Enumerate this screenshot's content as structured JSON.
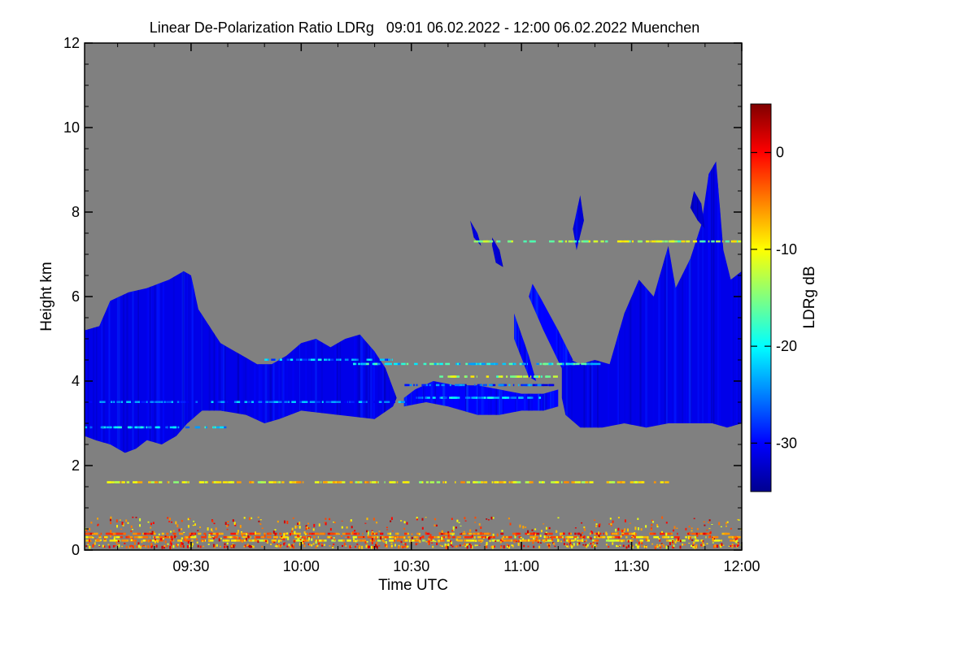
{
  "chart_data": {
    "type": "heatmap",
    "title": "Linear De-Polarization Ratio LDRg   09:01 06.02.2022 - 12:00 06.02.2022 Muenchen",
    "xlabel": "Time UTC",
    "ylabel": "Height km",
    "colorbar_label": "LDRg dB",
    "xlim_minutes_utc": [
      541,
      720
    ],
    "ylim_km": [
      0,
      12
    ],
    "x_ticks": [
      {
        "minute": 570,
        "label": "09:30"
      },
      {
        "minute": 600,
        "label": "10:00"
      },
      {
        "minute": 630,
        "label": "10:30"
      },
      {
        "minute": 660,
        "label": "11:00"
      },
      {
        "minute": 690,
        "label": "11:30"
      },
      {
        "minute": 720,
        "label": "12:00"
      }
    ],
    "y_ticks": [
      {
        "value": 0,
        "label": "0"
      },
      {
        "value": 2,
        "label": "2"
      },
      {
        "value": 4,
        "label": "4"
      },
      {
        "value": 6,
        "label": "6"
      },
      {
        "value": 8,
        "label": "8"
      },
      {
        "value": 10,
        "label": "10"
      },
      {
        "value": 12,
        "label": "12"
      }
    ],
    "colorbar_range_db": [
      -35,
      5
    ],
    "colorbar_ticks": [
      {
        "value": 0,
        "label": "0"
      },
      {
        "value": -10,
        "label": "-10"
      },
      {
        "value": -20,
        "label": "-20"
      },
      {
        "value": -30,
        "label": "-30"
      }
    ],
    "colormap": [
      "#00008f",
      "#0000ff",
      "#0080ff",
      "#00ffff",
      "#80ff80",
      "#ffff00",
      "#ff8000",
      "#ff0000",
      "#800000"
    ],
    "background_color": "#808080",
    "cloud_regions": [
      {
        "name": "morning-cloud-deck",
        "ldr_db": -31,
        "points": [
          [
            541,
            5.2
          ],
          [
            545,
            5.3
          ],
          [
            548,
            5.9
          ],
          [
            553,
            6.1
          ],
          [
            558,
            6.2
          ],
          [
            564,
            6.4
          ],
          [
            568,
            6.6
          ],
          [
            570,
            6.5
          ],
          [
            572,
            5.7
          ],
          [
            578,
            4.9
          ],
          [
            584,
            4.6
          ],
          [
            588,
            4.4
          ],
          [
            592,
            4.4
          ],
          [
            596,
            4.6
          ],
          [
            600,
            4.9
          ],
          [
            604,
            5.0
          ],
          [
            608,
            4.8
          ],
          [
            612,
            5.0
          ],
          [
            616,
            5.1
          ],
          [
            620,
            4.7
          ],
          [
            623,
            4.3
          ],
          [
            626,
            3.6
          ],
          [
            625,
            3.4
          ],
          [
            620,
            3.1
          ],
          [
            610,
            3.2
          ],
          [
            600,
            3.3
          ],
          [
            594,
            3.1
          ],
          [
            590,
            3.0
          ],
          [
            585,
            3.2
          ],
          [
            578,
            3.3
          ],
          [
            573,
            3.3
          ],
          [
            569,
            3.0
          ],
          [
            566,
            2.7
          ],
          [
            562,
            2.5
          ],
          [
            558,
            2.6
          ],
          [
            555,
            2.4
          ],
          [
            552,
            2.3
          ],
          [
            548,
            2.5
          ],
          [
            544,
            2.6
          ],
          [
            541,
            2.7
          ]
        ]
      },
      {
        "name": "mid-level-layer",
        "ldr_db": -30,
        "points": [
          [
            628,
            3.6
          ],
          [
            631,
            3.8
          ],
          [
            636,
            4.0
          ],
          [
            642,
            3.9
          ],
          [
            648,
            3.9
          ],
          [
            654,
            3.8
          ],
          [
            660,
            3.7
          ],
          [
            666,
            3.7
          ],
          [
            670,
            3.8
          ],
          [
            670,
            3.4
          ],
          [
            666,
            3.3
          ],
          [
            660,
            3.3
          ],
          [
            654,
            3.2
          ],
          [
            648,
            3.2
          ],
          [
            640,
            3.4
          ],
          [
            634,
            3.5
          ],
          [
            628,
            3.4
          ]
        ]
      },
      {
        "name": "afternoon-cloud-deck",
        "ldr_db": -31,
        "points": [
          [
            671,
            4.6
          ],
          [
            676,
            4.4
          ],
          [
            680,
            4.5
          ],
          [
            684,
            4.4
          ],
          [
            688,
            5.6
          ],
          [
            692,
            6.4
          ],
          [
            696,
            6.0
          ],
          [
            700,
            7.2
          ],
          [
            702,
            6.2
          ],
          [
            706,
            6.9
          ],
          [
            709,
            7.7
          ],
          [
            711,
            8.9
          ],
          [
            713,
            9.2
          ],
          [
            715,
            7.1
          ],
          [
            717,
            6.4
          ],
          [
            720,
            6.6
          ],
          [
            720,
            3.0
          ],
          [
            716,
            2.9
          ],
          [
            712,
            3.0
          ],
          [
            706,
            3.0
          ],
          [
            700,
            3.0
          ],
          [
            694,
            2.9
          ],
          [
            688,
            3.0
          ],
          [
            682,
            2.9
          ],
          [
            676,
            2.9
          ],
          [
            672,
            3.2
          ],
          [
            671,
            3.6
          ]
        ]
      },
      {
        "name": "fall-streak-1",
        "ldr_db": -30,
        "points": [
          [
            663,
            6.3
          ],
          [
            665,
            6.0
          ],
          [
            670,
            5.2
          ],
          [
            674,
            4.5
          ],
          [
            671,
            4.3
          ],
          [
            666,
            5.2
          ],
          [
            662,
            6.0
          ]
        ]
      },
      {
        "name": "fall-streak-2",
        "ldr_db": -30,
        "points": [
          [
            658,
            5.6
          ],
          [
            662,
            4.6
          ],
          [
            664,
            4.0
          ],
          [
            662,
            4.1
          ],
          [
            658,
            5.0
          ]
        ]
      },
      {
        "name": "high-streak-1",
        "ldr_db": -32,
        "points": [
          [
            707,
            8.5
          ],
          [
            709,
            8.2
          ],
          [
            710,
            7.6
          ],
          [
            708,
            7.8
          ],
          [
            706,
            8.1
          ]
        ]
      },
      {
        "name": "high-streak-2",
        "ldr_db": -32,
        "points": [
          [
            652,
            7.4
          ],
          [
            654,
            7.1
          ],
          [
            655,
            6.7
          ],
          [
            653,
            6.8
          ],
          [
            652,
            7.2
          ]
        ]
      },
      {
        "name": "high-streak-3",
        "ldr_db": -32,
        "points": [
          [
            676,
            8.4
          ],
          [
            677,
            7.8
          ],
          [
            675,
            7.1
          ],
          [
            674,
            7.6
          ]
        ]
      },
      {
        "name": "high-streak-4",
        "ldr_db": -32,
        "points": [
          [
            646,
            7.8
          ],
          [
            648,
            7.5
          ],
          [
            649,
            7.2
          ],
          [
            647,
            7.4
          ]
        ]
      }
    ],
    "streak_lines": [
      {
        "y_km": 7.3,
        "x_start": 647,
        "x_end": 720,
        "ldr_db": -13
      },
      {
        "y_km": 4.4,
        "x_start": 613,
        "x_end": 680,
        "ldr_db": -20
      },
      {
        "y_km": 4.1,
        "x_start": 635,
        "x_end": 670,
        "ldr_db": -14
      },
      {
        "y_km": 3.9,
        "x_start": 628,
        "x_end": 668,
        "ldr_db": -27
      },
      {
        "y_km": 3.6,
        "x_start": 631,
        "x_end": 668,
        "ldr_db": -23
      },
      {
        "y_km": 3.5,
        "x_start": 541,
        "x_end": 629,
        "ldr_db": -26
      },
      {
        "y_km": 2.9,
        "x_start": 541,
        "x_end": 580,
        "ldr_db": -22
      },
      {
        "y_km": 4.5,
        "x_start": 590,
        "x_end": 625,
        "ldr_db": -24
      },
      {
        "y_km": 1.6,
        "x_start": 547,
        "x_end": 700,
        "ldr_db": -10
      },
      {
        "y_km": 0.38,
        "x_start": 541,
        "x_end": 720,
        "ldr_db": -3
      },
      {
        "y_km": 0.3,
        "x_start": 541,
        "x_end": 720,
        "ldr_db": -6
      },
      {
        "y_km": 0.22,
        "x_start": 541,
        "x_end": 720,
        "ldr_db": -8
      }
    ],
    "noise_layer": {
      "y_range_km": [
        0.1,
        0.8
      ],
      "ldr_db_range": [
        -12,
        3
      ]
    }
  }
}
